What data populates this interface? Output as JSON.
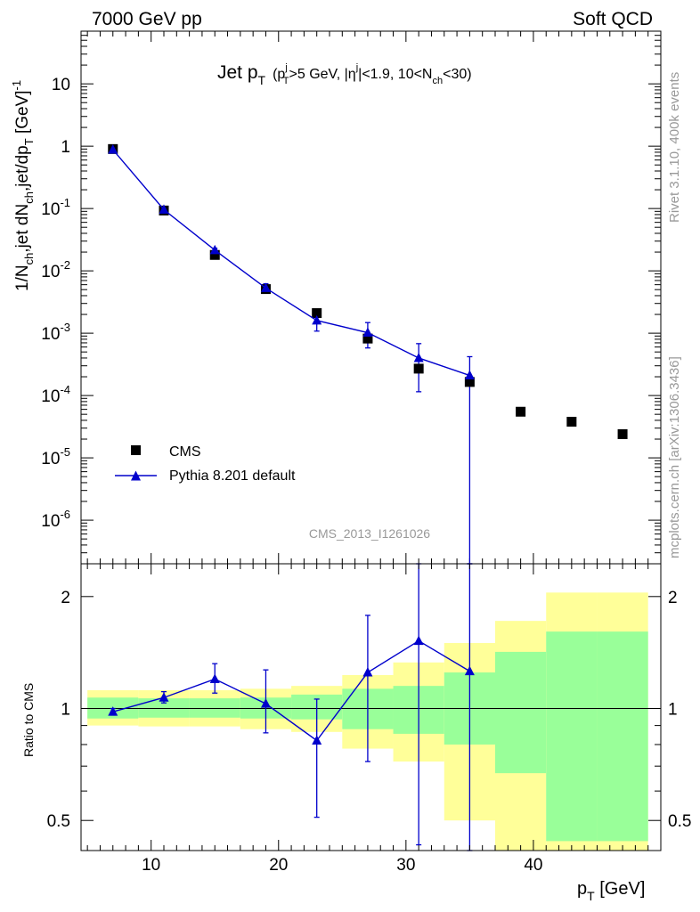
{
  "header": {
    "left": "7000 GeV pp",
    "right": "Soft QCD"
  },
  "side_text": {
    "rivet": "Rivet 3.1.10,  400k events",
    "mcplots": "mcplots.cern.ch [arXiv:1306.3436]"
  },
  "analysis_label": "CMS_2013_I1261026",
  "title": {
    "main": "Jet p",
    "main_sub": "T",
    "cut_1": "(p",
    "cut_1_sub": "T",
    "cut_1_sup": "j",
    "cut_2": ">5 GeV, |η",
    "cut_2_sup": "j",
    "cut_3": "|<1.9, 10<N",
    "cut_3_sub": "ch",
    "cut_4": "<30)"
  },
  "ylabel": {
    "p1": "1/N",
    "p1_sub": "ch",
    "p2": ",jet dN",
    "p2_sub": "ch",
    "p3": ",jet/dp",
    "p3_sub": "T",
    "p4": " [GeV]",
    "p4_sup": "-1"
  },
  "xlabel": {
    "main": "p",
    "sub": "T",
    "unit": " [GeV]"
  },
  "ratio_ylabel": "Ratio to CMS",
  "legend": {
    "data_label": "CMS",
    "mc_label": "Pythia 8.201 default",
    "placement": "lower-left"
  },
  "colors": {
    "data": "#000000",
    "mc": "#0000cc",
    "band_inner": "#99ff99",
    "band_outer": "#ffff99"
  },
  "chart_data": {
    "type": "scatter",
    "x_axis": {
      "range": [
        4.5,
        50
      ],
      "ticks": [
        10,
        20,
        30,
        40
      ],
      "tick_labels": [
        "10",
        "20",
        "30",
        "40"
      ]
    },
    "main_panel": {
      "y_scale": "log",
      "y_range": [
        2e-07,
        70
      ],
      "y_ticks": [
        1e-06,
        1e-05,
        0.0001,
        0.001,
        0.01,
        0.1,
        1,
        10
      ],
      "y_tick_labels": [
        "10^-6",
        "10^-5",
        "10^-4",
        "10^-3",
        "10^-2",
        "10^-1",
        "1",
        "10"
      ],
      "series": [
        {
          "name": "CMS",
          "marker": "square",
          "x": [
            7,
            11,
            15,
            19,
            23,
            27,
            31,
            35,
            39,
            43,
            47
          ],
          "y": [
            0.9,
            0.093,
            0.018,
            0.0051,
            0.0021,
            0.00082,
            0.00027,
            0.000165,
            5.5e-05,
            3.8e-05,
            2.4e-05
          ]
        },
        {
          "name": "Pythia 8.201 default",
          "marker": "triangle",
          "x": [
            7,
            11,
            15,
            19,
            23,
            27,
            31,
            35
          ],
          "y": [
            0.88,
            0.096,
            0.0215,
            0.0053,
            0.0016,
            0.00102,
            0.0004,
            0.00021
          ],
          "err_lo": [
            0.86,
            0.092,
            0.02,
            0.0045,
            0.00108,
            0.00058,
            0.000115,
            5e-08
          ],
          "err_hi": [
            0.9,
            0.1,
            0.023,
            0.0062,
            0.0021,
            0.00148,
            0.00068,
            0.00042
          ]
        }
      ]
    },
    "ratio_panel": {
      "y_range": [
        0.415,
        2.45
      ],
      "y_ticks": [
        0.5,
        1,
        2
      ],
      "y_tick_labels": [
        "0.5",
        "1",
        "2"
      ],
      "bands": {
        "bin_edges": [
          5,
          9,
          13,
          17,
          21,
          25,
          29,
          33,
          37,
          41,
          45,
          49
        ],
        "inner_lo": [
          0.94,
          0.945,
          0.945,
          0.94,
          0.935,
          0.88,
          0.855,
          0.8,
          0.67,
          0.44,
          0.44
        ],
        "inner_hi": [
          1.07,
          1.065,
          1.065,
          1.07,
          1.09,
          1.13,
          1.15,
          1.25,
          1.42,
          1.61,
          1.61
        ],
        "outer_lo": [
          0.9,
          0.895,
          0.895,
          0.88,
          0.865,
          0.78,
          0.72,
          0.5,
          0.345,
          0.345,
          0.345
        ],
        "outer_hi": [
          1.12,
          1.12,
          1.12,
          1.13,
          1.15,
          1.23,
          1.33,
          1.5,
          1.72,
          2.05,
          2.05
        ]
      },
      "series": [
        {
          "name": "Pythia 8.201 default",
          "x": [
            7,
            11,
            15,
            19,
            23,
            27,
            31,
            35
          ],
          "y": [
            0.98,
            1.07,
            1.2,
            1.03,
            0.82,
            1.25,
            1.52,
            1.26
          ],
          "err_lo": [
            0.96,
            1.035,
            1.1,
            0.86,
            0.51,
            0.72,
            0.43,
            0.3
          ],
          "err_hi": [
            1.0,
            1.11,
            1.32,
            1.27,
            1.06,
            1.78,
            2.5,
            2.5
          ]
        }
      ]
    }
  }
}
